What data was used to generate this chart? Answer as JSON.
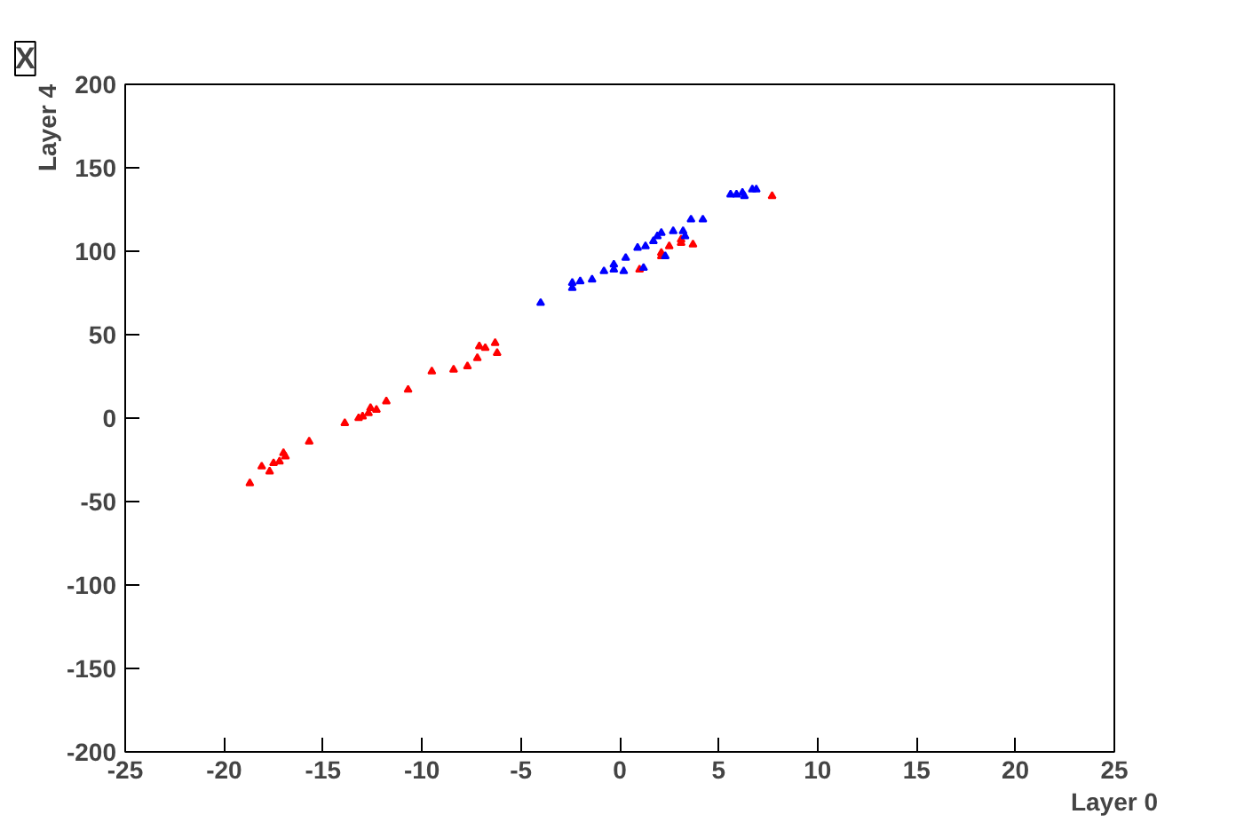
{
  "chart_data": {
    "type": "scatter",
    "title": "X",
    "xlabel": "Layer 0",
    "ylabel": "Layer 4",
    "xlim": [
      -25,
      25
    ],
    "ylim": [
      -200,
      200
    ],
    "xticks": [
      -25,
      -20,
      -15,
      -10,
      -5,
      0,
      5,
      10,
      15,
      20,
      25
    ],
    "yticks": [
      -200,
      -150,
      -100,
      -50,
      0,
      50,
      100,
      150,
      200
    ],
    "grid": false,
    "marker": "triangle",
    "series": [
      {
        "color": "#ff0000",
        "x": [
          -18.7,
          -18.1,
          -17.7,
          -17.5,
          -17.2,
          -17.0,
          -16.9,
          -15.7,
          -13.9,
          -13.2,
          -13.0,
          -12.6,
          -12.7,
          -12.3,
          -11.8,
          -10.7,
          -9.5,
          -8.4,
          -7.7,
          -7.2,
          -7.1,
          -6.8,
          -6.3,
          -6.2,
          1.0,
          2.1,
          2.1,
          2.5,
          3.1,
          3.1,
          3.7,
          7.7
        ],
        "values": [
          -39,
          -29,
          -32,
          -27,
          -26,
          -21,
          -23,
          -14,
          -3,
          0,
          1,
          6,
          3,
          5,
          10,
          17,
          28,
          29,
          31,
          36,
          43,
          42,
          45,
          39,
          89,
          99,
          97,
          103,
          107,
          105,
          104,
          133
        ]
      },
      {
        "color": "#0000ff",
        "x": [
          -4.0,
          -2.4,
          -2.4,
          -2.0,
          -1.4,
          -0.8,
          -0.3,
          -0.3,
          0.2,
          0.3,
          0.9,
          1.3,
          1.2,
          1.7,
          1.9,
          2.1,
          2.3,
          2.7,
          3.2,
          3.3,
          3.6,
          4.2,
          5.6,
          5.9,
          6.2,
          6.3,
          6.7,
          6.9
        ],
        "values": [
          69,
          78,
          81,
          82,
          83,
          88,
          89,
          92,
          88,
          96,
          102,
          103,
          90,
          106,
          109,
          111,
          97,
          112,
          112,
          109,
          119,
          119,
          134,
          134,
          135,
          133,
          137,
          137
        ]
      }
    ]
  }
}
